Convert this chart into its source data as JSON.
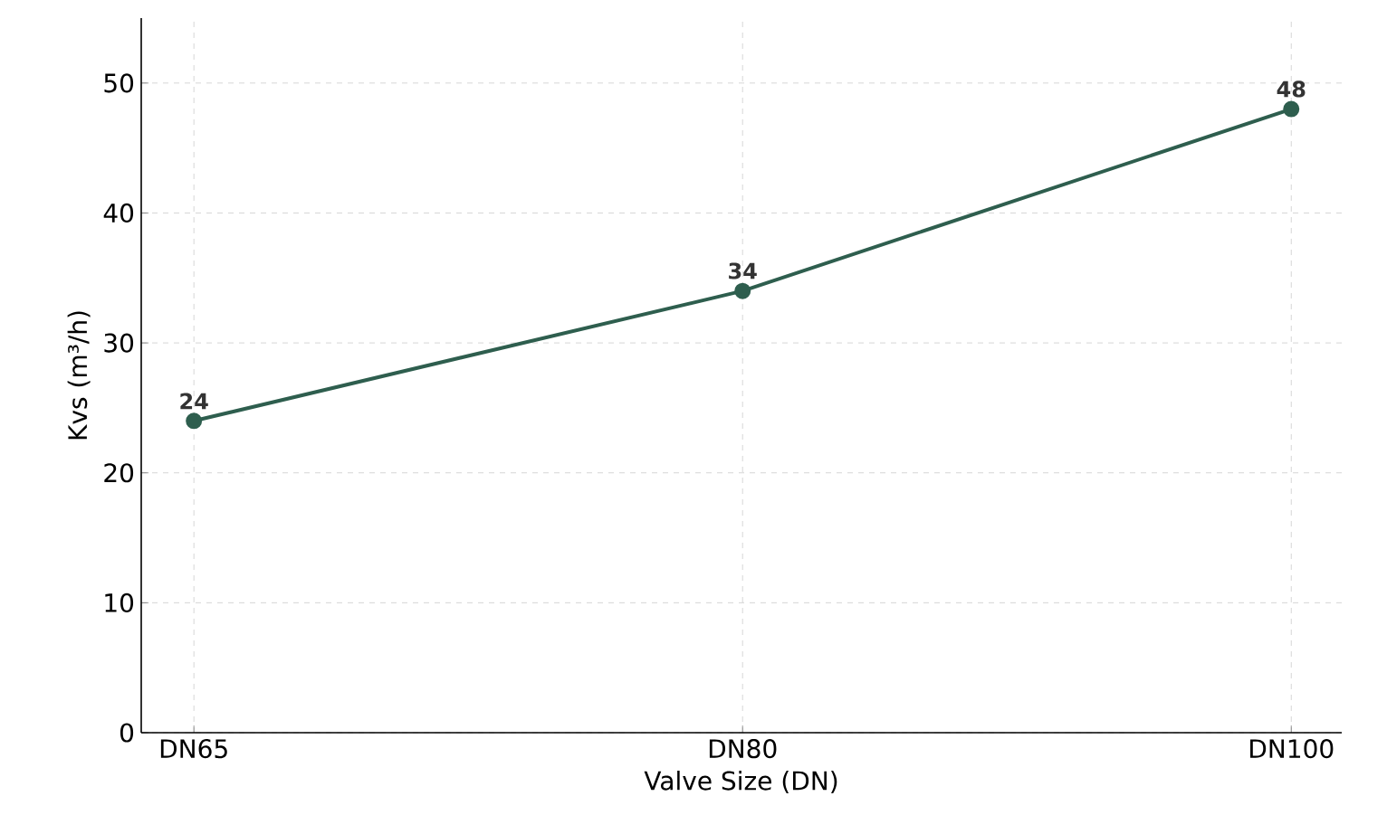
{
  "chart_data": {
    "type": "line",
    "xlabel": "Valve Size (DN)",
    "ylabel": "Kvs (m³/h)",
    "categories": [
      "DN65",
      "DN80",
      "DN100"
    ],
    "series": [
      {
        "color": "#2e5e4e",
        "values": [
          24,
          34,
          48
        ]
      }
    ],
    "ylim": [
      0,
      55
    ],
    "yticks": [
      0,
      10,
      20,
      30,
      40,
      50
    ],
    "grid": true,
    "marker": "circle",
    "line_style": "solid",
    "data_labels": true
  }
}
